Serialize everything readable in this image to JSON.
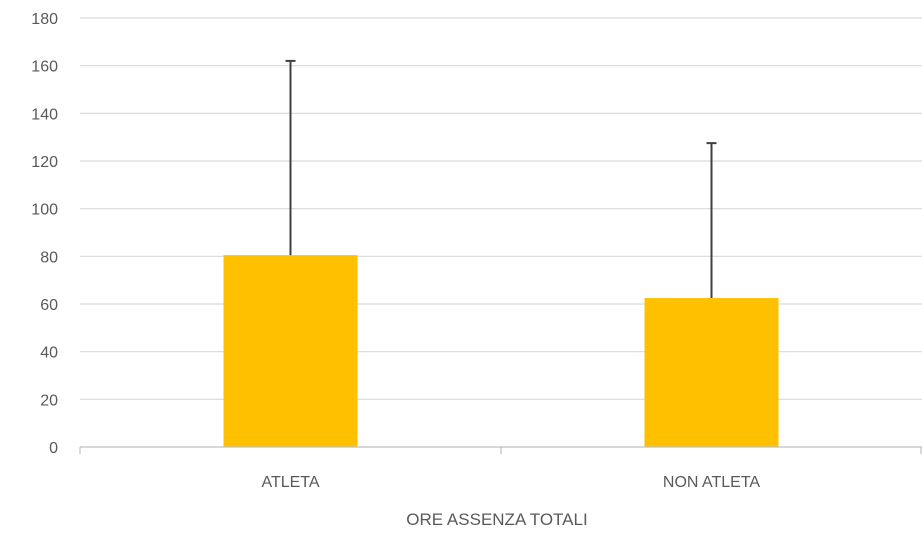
{
  "chart_data": {
    "type": "bar",
    "categories": [
      "ATLETA",
      "NON ATLETA"
    ],
    "values": [
      80.5,
      62.5
    ],
    "error_bars_upper": [
      162,
      127.5
    ],
    "xlabel": "ORE ASSENZA TOTALI",
    "ylabel": "",
    "ylim": [
      0,
      180
    ],
    "yticks": [
      0,
      20,
      40,
      60,
      80,
      100,
      120,
      140,
      160,
      180
    ],
    "grid": true,
    "legend": "none",
    "colors": {
      "bar": "#FFC000",
      "error_bar": "#404040",
      "grid": "#D9D9D9",
      "axis": "#BFBFBF"
    }
  }
}
